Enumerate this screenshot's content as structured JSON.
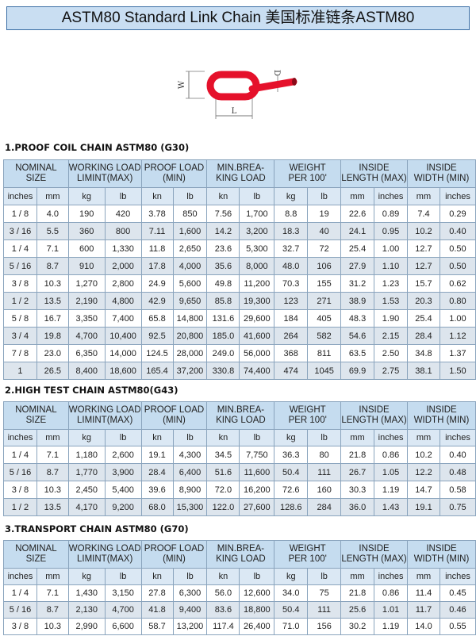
{
  "header": {
    "title": "ASTM80 Standard Link Chain  美国标准链条ASTM80"
  },
  "diagram": {
    "labels": {
      "w": "W",
      "d": "D",
      "l": "L"
    }
  },
  "columns": {
    "header": [
      [
        "NOMINAL",
        "SIZE"
      ],
      [
        "WORKING LOAD",
        "LIMINT(MAX)"
      ],
      [
        "PROOF LOAD",
        "(MIN)"
      ],
      [
        "MIN.BREA-",
        "KING LOAD"
      ],
      [
        "WEIGHT",
        "PER 100'"
      ],
      [
        "INSIDE",
        "LENGTH (MAX)"
      ],
      [
        "INSIDE",
        "WIDTH (MIN)"
      ]
    ],
    "units": [
      "inches",
      "mm",
      "kg",
      "lb",
      "kn",
      "lb",
      "kn",
      "lb",
      "kg",
      "lb",
      "mm",
      "inches",
      "mm",
      "inches"
    ]
  },
  "tables": [
    {
      "heading": "1.PROOF COIL CHAIN ASTM80 (G30)",
      "rows": [
        [
          "1 / 8",
          "4.0",
          "190",
          "420",
          "3.78",
          "850",
          "7.56",
          "1,700",
          "8.8",
          "19",
          "22.6",
          "0.89",
          "7.4",
          "0.29"
        ],
        [
          "3 / 16",
          "5.5",
          "360",
          "800",
          "7.11",
          "1,600",
          "14.2",
          "3,200",
          "18.3",
          "40",
          "24.1",
          "0.95",
          "10.2",
          "0.40"
        ],
        [
          "1 / 4",
          "7.1",
          "600",
          "1,330",
          "11.8",
          "2,650",
          "23.6",
          "5,300",
          "32.7",
          "72",
          "25.4",
          "1.00",
          "12.7",
          "0.50"
        ],
        [
          "5 / 16",
          "8.7",
          "910",
          "2,000",
          "17.8",
          "4,000",
          "35.6",
          "8,000",
          "48.0",
          "106",
          "27.9",
          "1.10",
          "12.7",
          "0.50"
        ],
        [
          "3 / 8",
          "10.3",
          "1,270",
          "2,800",
          "24.9",
          "5,600",
          "49.8",
          "11,200",
          "70.3",
          "155",
          "31.2",
          "1.23",
          "15.7",
          "0.62"
        ],
        [
          "1 / 2",
          "13.5",
          "2,190",
          "4,800",
          "42.9",
          "9,650",
          "85.8",
          "19,300",
          "123",
          "271",
          "38.9",
          "1.53",
          "20.3",
          "0.80"
        ],
        [
          "5 / 8",
          "16.7",
          "3,350",
          "7,400",
          "65.8",
          "14,800",
          "131.6",
          "29,600",
          "184",
          "405",
          "48.3",
          "1.90",
          "25.4",
          "1.00"
        ],
        [
          "3 / 4",
          "19.8",
          "4,700",
          "10,400",
          "92.5",
          "20,800",
          "185.0",
          "41,600",
          "264",
          "582",
          "54.6",
          "2.15",
          "28.4",
          "1.12"
        ],
        [
          "7 / 8",
          "23.0",
          "6,350",
          "14,000",
          "124.5",
          "28,000",
          "249.0",
          "56,000",
          "368",
          "811",
          "63.5",
          "2.50",
          "34.8",
          "1.37"
        ],
        [
          "1",
          "26.5",
          "8,400",
          "18,600",
          "165.4",
          "37,200",
          "330.8",
          "74,400",
          "474",
          "1045",
          "69.9",
          "2.75",
          "38.1",
          "1.50"
        ]
      ]
    },
    {
      "heading": "2.HIGH TEST CHAIN ASTM80(G43)",
      "rows": [
        [
          "1 / 4",
          "7.1",
          "1,180",
          "2,600",
          "19.1",
          "4,300",
          "34.5",
          "7,750",
          "36.3",
          "80",
          "21.8",
          "0.86",
          "10.2",
          "0.40"
        ],
        [
          "5 / 16",
          "8.7",
          "1,770",
          "3,900",
          "28.4",
          "6,400",
          "51.6",
          "11,600",
          "50.4",
          "111",
          "26.7",
          "1.05",
          "12.2",
          "0.48"
        ],
        [
          "3 / 8",
          "10.3",
          "2,450",
          "5,400",
          "39.6",
          "8,900",
          "72.0",
          "16,200",
          "72.6",
          "160",
          "30.3",
          "1.19",
          "14.7",
          "0.58"
        ],
        [
          "1 / 2",
          "13.5",
          "4,170",
          "9,200",
          "68.0",
          "15,300",
          "122.0",
          "27,600",
          "128.6",
          "284",
          "36.0",
          "1.43",
          "19.1",
          "0.75"
        ]
      ]
    },
    {
      "heading": "3.TRANSPORT CHAIN ASTM80 (G70)",
      "rows": [
        [
          "1 / 4",
          "7.1",
          "1,430",
          "3,150",
          "27.8",
          "6,300",
          "56.0",
          "12,600",
          "34.0",
          "75",
          "21.8",
          "0.86",
          "11.4",
          "0.45"
        ],
        [
          "5 / 16",
          "8.7",
          "2,130",
          "4,700",
          "41.8",
          "9,400",
          "83.6",
          "18,800",
          "50.4",
          "111",
          "25.6",
          "1.01",
          "11.7",
          "0.46"
        ],
        [
          "3 / 8",
          "10.3",
          "2,990",
          "6,600",
          "58.7",
          "13,200",
          "117.4",
          "26,400",
          "71.0",
          "156",
          "30.2",
          "1.19",
          "14.0",
          "0.55"
        ]
      ]
    }
  ]
}
